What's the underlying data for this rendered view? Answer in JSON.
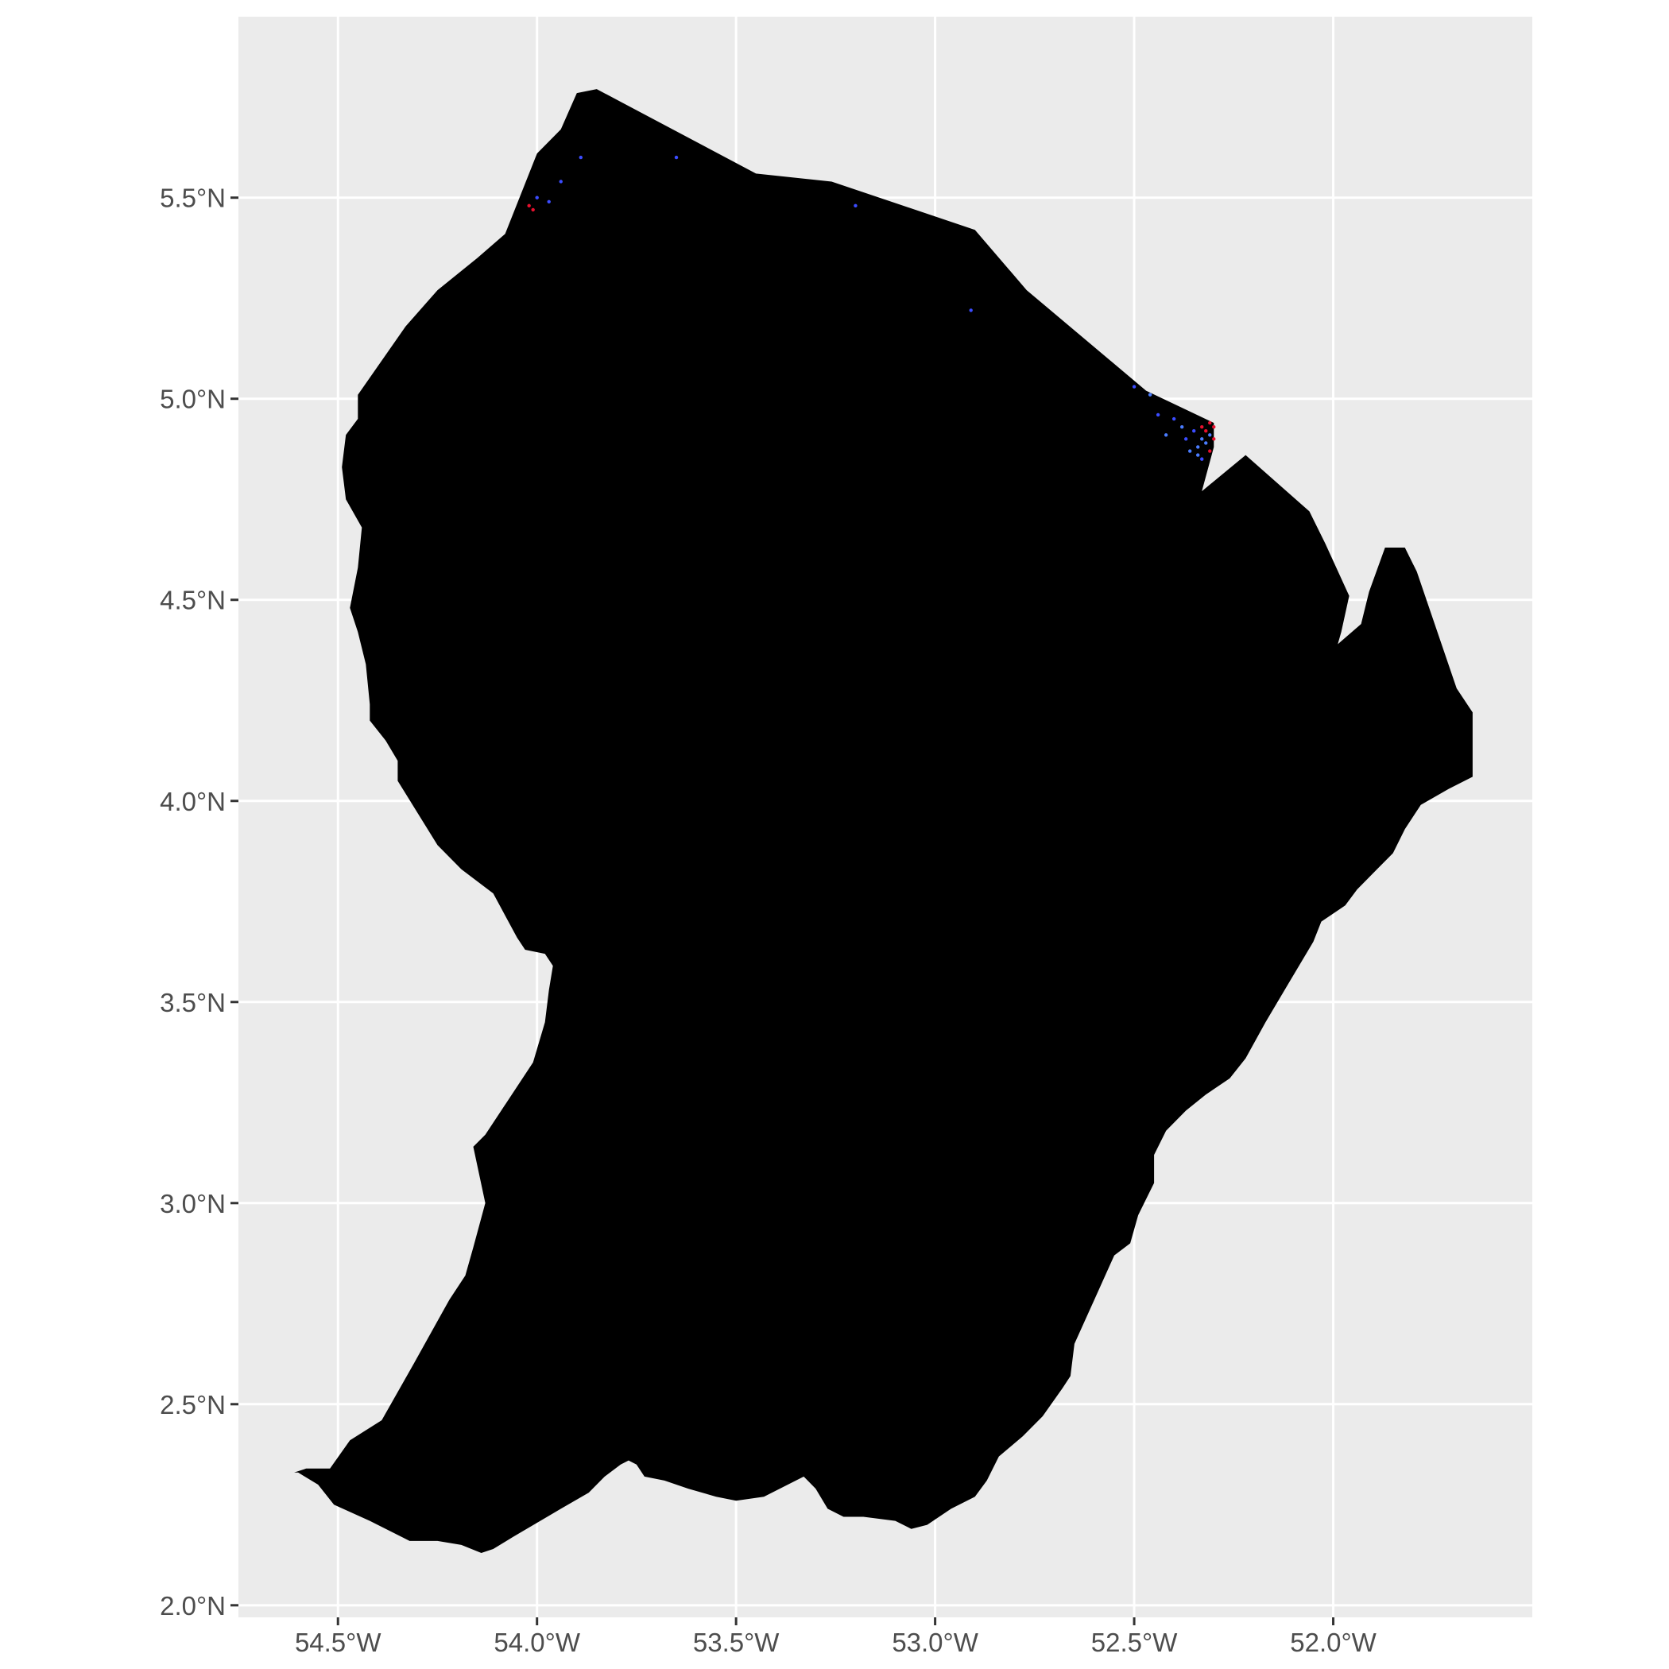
{
  "chart_data": {
    "type": "map",
    "title": "",
    "xlabel": "",
    "ylabel": "",
    "xlim": [
      -54.75,
      -51.5
    ],
    "ylim": [
      1.97,
      5.95
    ],
    "grid": true,
    "x_ticks": [
      {
        "value": -54.5,
        "label": "54.5°W"
      },
      {
        "value": -54.0,
        "label": "54.0°W"
      },
      {
        "value": -53.5,
        "label": "53.5°W"
      },
      {
        "value": -53.0,
        "label": "53.0°W"
      },
      {
        "value": -52.5,
        "label": "52.5°W"
      },
      {
        "value": -52.0,
        "label": "52.0°W"
      }
    ],
    "y_ticks": [
      {
        "value": 5.5,
        "label": "5.5°N"
      },
      {
        "value": 5.0,
        "label": "5.0°N"
      },
      {
        "value": 4.5,
        "label": "4.5°N"
      },
      {
        "value": 4.0,
        "label": "4.0°N"
      },
      {
        "value": 3.5,
        "label": "3.5°N"
      },
      {
        "value": 3.0,
        "label": "3.0°N"
      },
      {
        "value": 2.5,
        "label": "2.5°N"
      },
      {
        "value": 2.0,
        "label": "2.0°N"
      }
    ],
    "region_fill": "#000000",
    "panel_background": "#ebebeb",
    "grid_color": "#ffffff",
    "outline": [
      [
        -53.85,
        5.77
      ],
      [
        -53.45,
        5.56
      ],
      [
        -53.26,
        5.54
      ],
      [
        -52.9,
        5.42
      ],
      [
        -52.77,
        5.27
      ],
      [
        -52.47,
        5.02
      ],
      [
        -52.3,
        4.94
      ],
      [
        -52.3,
        4.88
      ],
      [
        -52.33,
        4.77
      ],
      [
        -52.22,
        4.86
      ],
      [
        -52.06,
        4.72
      ],
      [
        -52.02,
        4.64
      ],
      [
        -51.96,
        4.51
      ],
      [
        -51.98,
        4.42
      ],
      [
        -52.0,
        4.35
      ],
      [
        -52.0,
        4.38
      ],
      [
        -51.93,
        4.44
      ],
      [
        -51.91,
        4.52
      ],
      [
        -51.87,
        4.63
      ],
      [
        -51.82,
        4.63
      ],
      [
        -51.79,
        4.57
      ],
      [
        -51.69,
        4.28
      ],
      [
        -51.65,
        4.22
      ],
      [
        -51.65,
        4.14
      ],
      [
        -51.65,
        4.06
      ],
      [
        -51.71,
        4.03
      ],
      [
        -51.78,
        3.99
      ],
      [
        -51.82,
        3.93
      ],
      [
        -51.85,
        3.87
      ],
      [
        -51.89,
        3.83
      ],
      [
        -51.94,
        3.78
      ],
      [
        -51.97,
        3.74
      ],
      [
        -52.03,
        3.7
      ],
      [
        -52.05,
        3.65
      ],
      [
        -52.11,
        3.55
      ],
      [
        -52.17,
        3.45
      ],
      [
        -52.22,
        3.36
      ],
      [
        -52.26,
        3.31
      ],
      [
        -52.32,
        3.27
      ],
      [
        -52.37,
        3.23
      ],
      [
        -52.42,
        3.18
      ],
      [
        -52.45,
        3.12
      ],
      [
        -52.45,
        3.05
      ],
      [
        -52.49,
        2.97
      ],
      [
        -52.51,
        2.9
      ],
      [
        -52.55,
        2.87
      ],
      [
        -52.6,
        2.76
      ],
      [
        -52.65,
        2.65
      ],
      [
        -52.66,
        2.57
      ],
      [
        -52.68,
        2.54
      ],
      [
        -52.73,
        2.47
      ],
      [
        -52.78,
        2.42
      ],
      [
        -52.84,
        2.37
      ],
      [
        -52.87,
        2.31
      ],
      [
        -52.9,
        2.27
      ],
      [
        -52.96,
        2.24
      ],
      [
        -53.02,
        2.2
      ],
      [
        -53.06,
        2.19
      ],
      [
        -53.1,
        2.21
      ],
      [
        -53.18,
        2.22
      ],
      [
        -53.23,
        2.22
      ],
      [
        -53.27,
        2.24
      ],
      [
        -53.3,
        2.29
      ],
      [
        -53.33,
        2.32
      ],
      [
        -53.37,
        2.3
      ],
      [
        -53.43,
        2.27
      ],
      [
        -53.5,
        2.26
      ],
      [
        -53.55,
        2.27
      ],
      [
        -53.62,
        2.29
      ],
      [
        -53.68,
        2.31
      ],
      [
        -53.73,
        2.32
      ],
      [
        -53.75,
        2.35
      ],
      [
        -53.77,
        2.36
      ],
      [
        -53.79,
        2.35
      ],
      [
        -53.83,
        2.32
      ],
      [
        -53.87,
        2.28
      ],
      [
        -53.94,
        2.24
      ],
      [
        -54.06,
        2.17
      ],
      [
        -54.11,
        2.14
      ],
      [
        -54.14,
        2.13
      ],
      [
        -54.19,
        2.15
      ],
      [
        -54.25,
        2.16
      ],
      [
        -54.32,
        2.16
      ],
      [
        -54.42,
        2.21
      ],
      [
        -54.51,
        2.25
      ],
      [
        -54.55,
        2.3
      ],
      [
        -54.6,
        2.33
      ],
      [
        -54.61,
        2.33
      ],
      [
        -54.58,
        2.34
      ],
      [
        -54.52,
        2.34
      ],
      [
        -54.47,
        2.41
      ],
      [
        -54.39,
        2.46
      ],
      [
        -54.31,
        2.6
      ],
      [
        -54.22,
        2.76
      ],
      [
        -54.18,
        2.82
      ],
      [
        -54.16,
        2.89
      ],
      [
        -54.13,
        3.0
      ],
      [
        -54.16,
        3.14
      ],
      [
        -54.13,
        3.17
      ],
      [
        -54.01,
        3.35
      ],
      [
        -53.98,
        3.45
      ],
      [
        -53.97,
        3.53
      ],
      [
        -53.96,
        3.59
      ],
      [
        -53.98,
        3.62
      ],
      [
        -54.03,
        3.63
      ],
      [
        -54.05,
        3.66
      ],
      [
        -54.11,
        3.77
      ],
      [
        -54.19,
        3.83
      ],
      [
        -54.25,
        3.89
      ],
      [
        -54.35,
        4.05
      ],
      [
        -54.35,
        4.1
      ],
      [
        -54.38,
        4.15
      ],
      [
        -54.42,
        4.2
      ],
      [
        -54.42,
        4.24
      ],
      [
        -54.43,
        4.34
      ],
      [
        -54.45,
        4.42
      ],
      [
        -54.47,
        4.48
      ],
      [
        -54.45,
        4.58
      ],
      [
        -54.44,
        4.68
      ],
      [
        -54.48,
        4.75
      ],
      [
        -54.49,
        4.83
      ],
      [
        -54.48,
        4.91
      ],
      [
        -54.45,
        4.95
      ],
      [
        -54.45,
        5.01
      ],
      [
        -54.33,
        5.18
      ],
      [
        -54.25,
        5.27
      ],
      [
        -54.15,
        5.35
      ],
      [
        -54.08,
        5.41
      ],
      [
        -54.0,
        5.61
      ],
      [
        -53.94,
        5.67
      ],
      [
        -53.9,
        5.76
      ]
    ],
    "points": [
      {
        "lon": -54.02,
        "lat": 5.48,
        "color": "#e8102e"
      },
      {
        "lon": -54.01,
        "lat": 5.47,
        "color": "#e8102e"
      },
      {
        "lon": -54.0,
        "lat": 5.5,
        "color": "#3b4cff"
      },
      {
        "lon": -53.97,
        "lat": 5.49,
        "color": "#3b4cff"
      },
      {
        "lon": -53.94,
        "lat": 5.54,
        "color": "#3b4cff"
      },
      {
        "lon": -53.89,
        "lat": 5.6,
        "color": "#3b4cff"
      },
      {
        "lon": -53.65,
        "lat": 5.6,
        "color": "#3b4cff"
      },
      {
        "lon": -53.2,
        "lat": 5.48,
        "color": "#3b4cff"
      },
      {
        "lon": -52.91,
        "lat": 5.22,
        "color": "#3b4cff"
      },
      {
        "lon": -52.5,
        "lat": 5.03,
        "color": "#3b4cff"
      },
      {
        "lon": -52.46,
        "lat": 5.01,
        "color": "#4a7cff"
      },
      {
        "lon": -52.44,
        "lat": 4.96,
        "color": "#3b4cff"
      },
      {
        "lon": -52.42,
        "lat": 4.91,
        "color": "#4a7cff"
      },
      {
        "lon": -52.4,
        "lat": 4.95,
        "color": "#3b4cff"
      },
      {
        "lon": -52.38,
        "lat": 4.93,
        "color": "#4a7cff"
      },
      {
        "lon": -52.37,
        "lat": 4.9,
        "color": "#3b4cff"
      },
      {
        "lon": -52.36,
        "lat": 4.87,
        "color": "#4a7cff"
      },
      {
        "lon": -52.35,
        "lat": 4.92,
        "color": "#3b4cff"
      },
      {
        "lon": -52.34,
        "lat": 4.88,
        "color": "#4a7cff"
      },
      {
        "lon": -52.33,
        "lat": 4.93,
        "color": "#e8102e"
      },
      {
        "lon": -52.32,
        "lat": 4.92,
        "color": "#e8102e"
      },
      {
        "lon": -52.31,
        "lat": 4.94,
        "color": "#e8102e"
      },
      {
        "lon": -52.32,
        "lat": 4.89,
        "color": "#4a7cff"
      },
      {
        "lon": -52.31,
        "lat": 4.87,
        "color": "#e8102e"
      },
      {
        "lon": -52.3,
        "lat": 4.93,
        "color": "#e8102e"
      },
      {
        "lon": -52.33,
        "lat": 4.9,
        "color": "#4a7cff"
      },
      {
        "lon": -52.34,
        "lat": 4.86,
        "color": "#4a7cff"
      },
      {
        "lon": -52.33,
        "lat": 4.85,
        "color": "#3b4cff"
      },
      {
        "lon": -52.31,
        "lat": 4.91,
        "color": "#4a7cff"
      },
      {
        "lon": -52.3,
        "lat": 4.9,
        "color": "#e8102e"
      }
    ]
  }
}
